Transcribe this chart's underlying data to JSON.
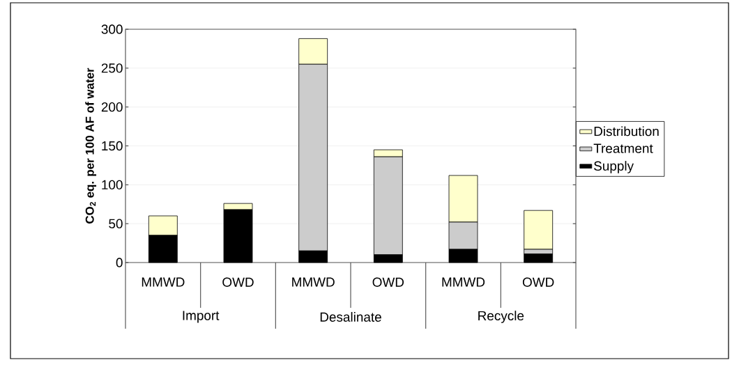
{
  "chart_data": {
    "type": "bar",
    "stacked": true,
    "ylabel": "CO$_{2}$ eq. per 100 AF of water",
    "categories": [
      "MMWD",
      "OWD",
      "MMWD",
      "OWD",
      "MMWD",
      "OWD"
    ],
    "annotations": [
      "Import",
      "Desalinate",
      "Recycle"
    ],
    "series": [
      {
        "name": "Supply",
        "color": "#000000",
        "values": [
          35,
          68,
          15,
          10,
          17,
          11
        ]
      },
      {
        "name": "Treatment",
        "color": "#cccccc",
        "values": [
          0,
          0,
          240,
          126,
          35,
          6
        ]
      },
      {
        "name": "Distribution",
        "color": "#ffffcc",
        "values": [
          25,
          8,
          33,
          9,
          60,
          50
        ]
      }
    ],
    "ylim": [
      0,
      300
    ],
    "yticks": [
      0,
      50,
      100,
      150,
      200,
      250,
      300
    ],
    "grid": "y",
    "legend": "right"
  }
}
